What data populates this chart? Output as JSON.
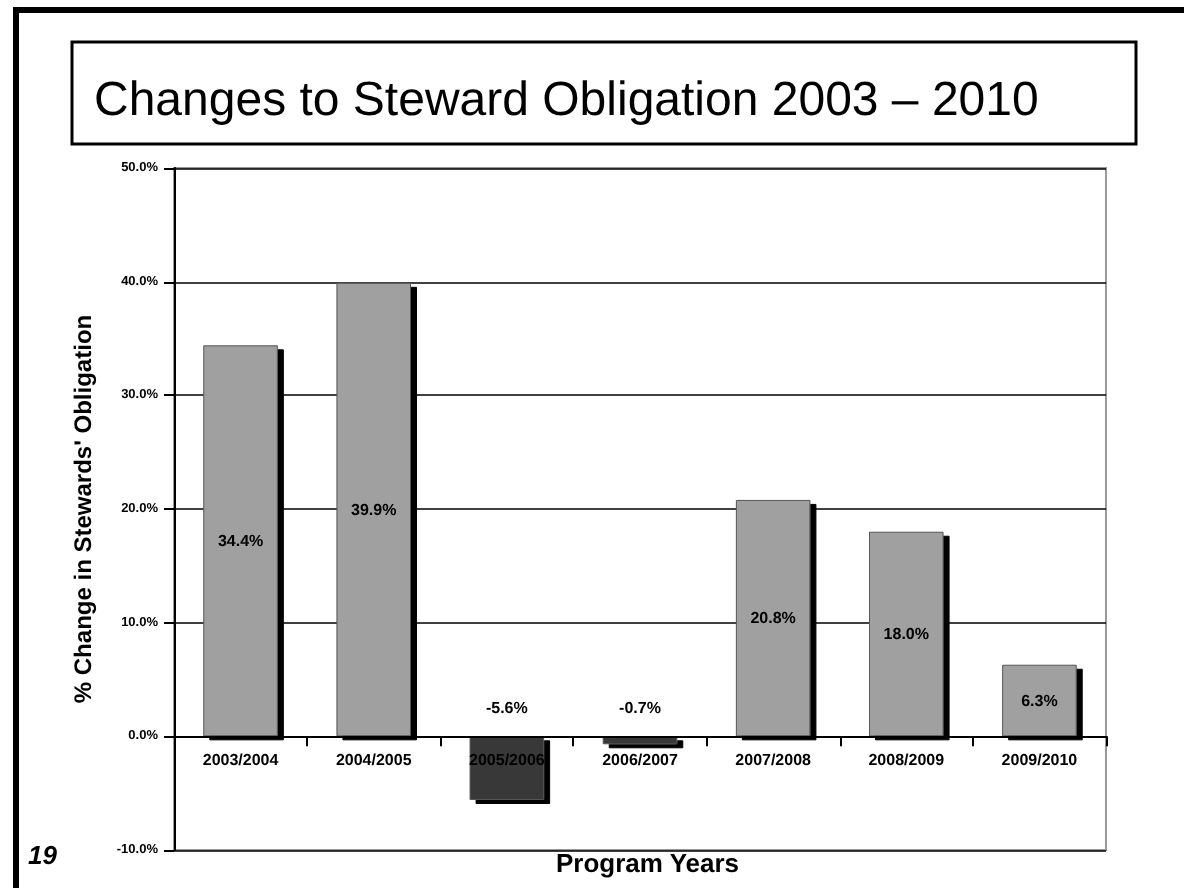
{
  "chart_data": {
    "type": "bar",
    "title": "Changes to Steward Obligation 2003 – 2010",
    "xlabel": "Program Years",
    "ylabel": "% Change in Stewards' Obligation",
    "annotations": [
      "19"
    ],
    "categories": [
      "2003/2004",
      "2004/2005",
      "2005/2006",
      "2006/2007",
      "2007/2008",
      "2008/2009",
      "2009/2010"
    ],
    "values": [
      34.4,
      39.9,
      -5.6,
      -0.7,
      20.8,
      18.0,
      6.3
    ],
    "value_labels": [
      "34.4%",
      "39.9%",
      "-5.6%",
      "-0.7%",
      "20.8%",
      "18.0%",
      "6.3%"
    ],
    "colors": [
      "#a0a0a0",
      "#a0a0a0",
      "#383838",
      "#383838",
      "#a0a0a0",
      "#a0a0a0",
      "#a0a0a0"
    ],
    "ylim": [
      -10,
      50
    ],
    "yticks": [
      {
        "value": -10,
        "label": "-10.0%"
      },
      {
        "value": 0,
        "label": "0.0%"
      },
      {
        "value": 10,
        "label": "10.0%"
      },
      {
        "value": 20,
        "label": "20.0%"
      },
      {
        "value": 30,
        "label": "30.0%"
      },
      {
        "value": 40,
        "label": "40.0%"
      },
      {
        "value": 50,
        "label": "50.0%"
      }
    ],
    "grid": "y"
  }
}
